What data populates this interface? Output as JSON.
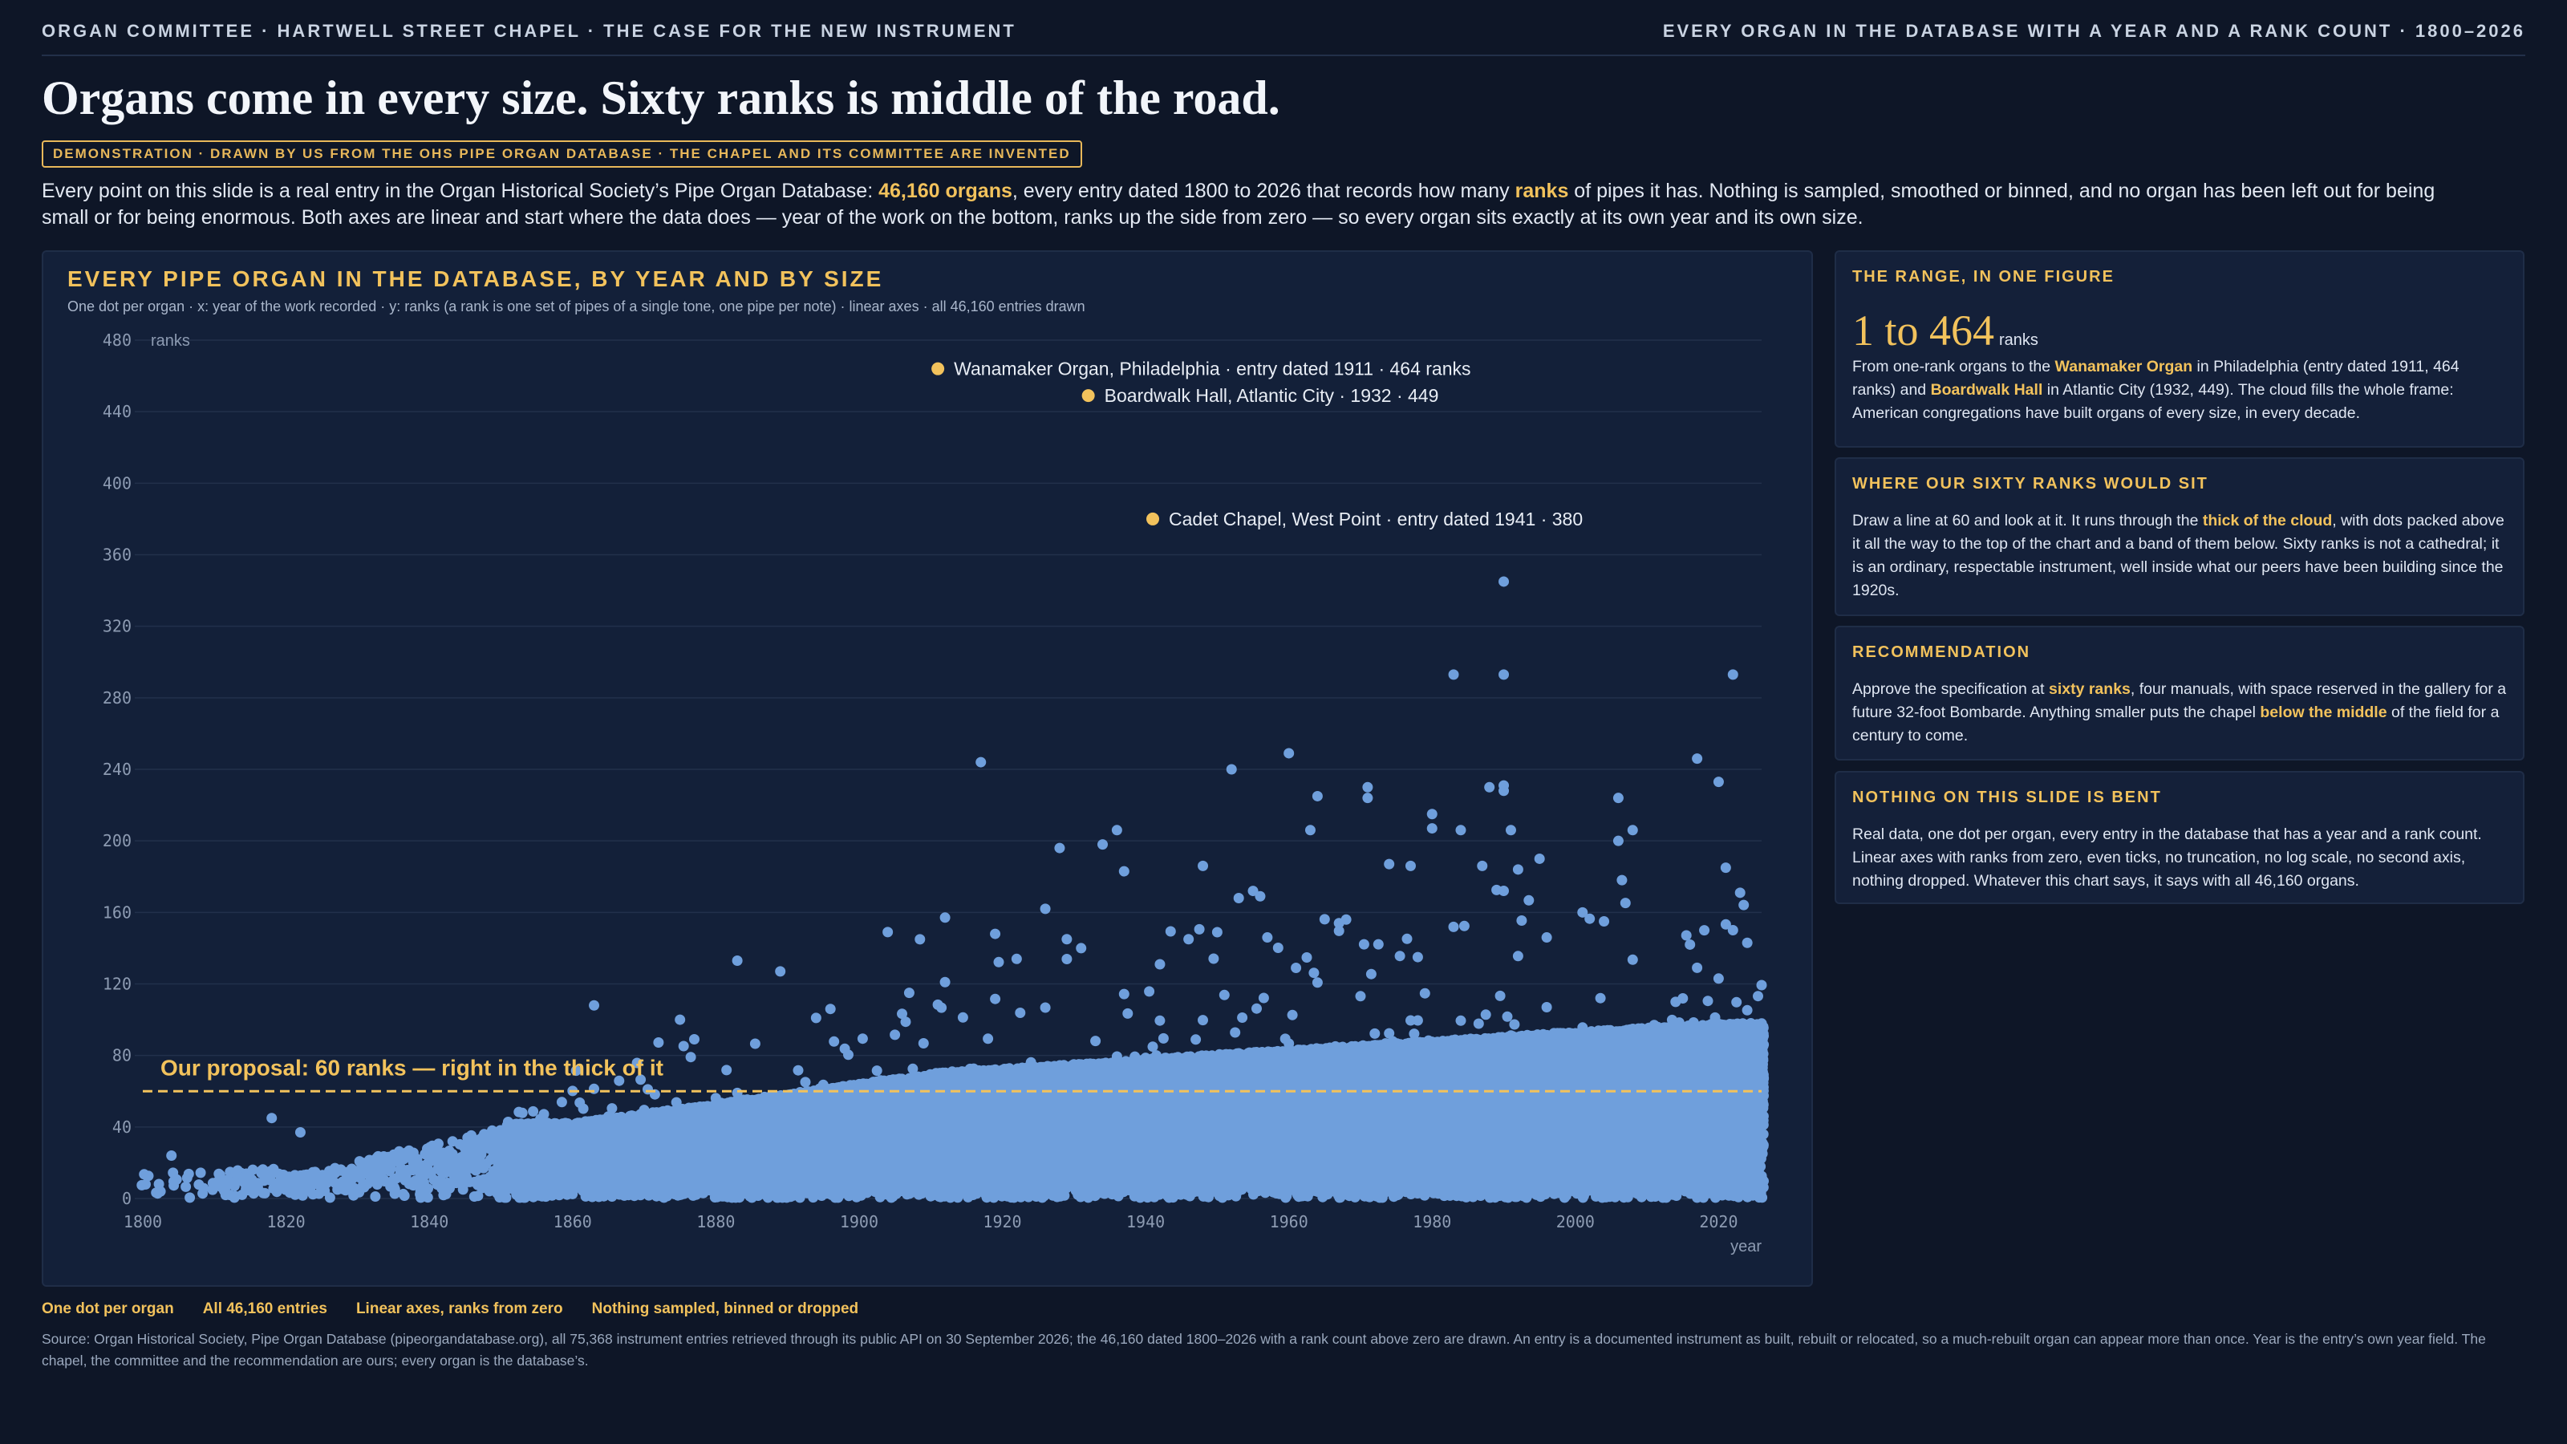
{
  "header": {
    "left": "ORGAN COMMITTEE · HARTWELL STREET CHAPEL · THE CASE FOR THE NEW INSTRUMENT",
    "right": "EVERY ORGAN IN THE DATABASE WITH A YEAR AND A RANK COUNT · 1800–2026"
  },
  "headline": "Organs come in every size. Sixty ranks is middle of the road.",
  "badge": "DEMONSTRATION · DRAWN BY US FROM THE OHS PIPE ORGAN DATABASE · THE CHAPEL AND ITS COMMITTEE ARE INVENTED",
  "lede": {
    "part1": "Every point on this slide is a real entry in the Organ Historical Society’s Pipe Organ Database: ",
    "hl1": "46,160 organs",
    "part2": ", every entry dated 1800 to 2026 that records how many ",
    "hl2": "ranks",
    "part3": " of pipes it has. Nothing is sampled, smoothed or binned, and no organ has been left out for being small or for being enormous. Both axes are linear and start where the data does — year of the work on the bottom, ranks up the side from zero — so every organ sits exactly at its own year and its own size."
  },
  "chart_panel": {
    "title": "EVERY PIPE ORGAN IN THE DATABASE, BY YEAR AND BY SIZE",
    "subtitle": "One dot per organ · x: year of the work recorded · y: ranks (a rank is one set of pipes of a single tone, one pipe per note) · linear axes · all 46,160 entries drawn"
  },
  "chart_data": {
    "type": "scatter",
    "title": "EVERY PIPE ORGAN IN THE DATABASE, BY YEAR AND BY SIZE",
    "xlabel": "year",
    "ylabel": "ranks",
    "xlim": [
      1800,
      2026
    ],
    "ylim": [
      0,
      480
    ],
    "x_ticks": [
      1800,
      1820,
      1840,
      1860,
      1880,
      1900,
      1920,
      1940,
      1960,
      1980,
      2000,
      2020
    ],
    "y_ticks": [
      0,
      40,
      80,
      120,
      160,
      200,
      240,
      280,
      320,
      360,
      400,
      440,
      480
    ],
    "grid": true,
    "point_count": 46160,
    "point_color": "#6f9fdc",
    "highlight_color": "#f2c25c",
    "reference_line": {
      "y": 60,
      "label": "Our proposal: 60 ranks — right in the thick of it"
    },
    "labeled_points": [
      {
        "x": 1911,
        "y": 464,
        "label": "Wanamaker Organ, Philadelphia · entry dated 1911 · 464 ranks"
      },
      {
        "x": 1932,
        "y": 449,
        "label": "Boardwalk Hall, Atlantic City · 1932 · 449"
      },
      {
        "x": 1941,
        "y": 380,
        "label": "Cadet Chapel, West Point · entry dated 1941 · 380"
      }
    ],
    "notable_points": [
      [
        1990,
        345
      ],
      [
        1983,
        293
      ],
      [
        1990,
        293
      ],
      [
        2022,
        293
      ],
      [
        1917,
        244
      ],
      [
        1952,
        240
      ],
      [
        1960,
        249
      ],
      [
        2017,
        246
      ],
      [
        2020,
        233
      ],
      [
        1988,
        230
      ],
      [
        1990,
        231
      ],
      [
        1990,
        228
      ],
      [
        1971,
        230
      ],
      [
        1971,
        224
      ],
      [
        2006,
        224
      ],
      [
        1964,
        225
      ],
      [
        1980,
        215
      ],
      [
        1980,
        207
      ],
      [
        1984,
        206
      ],
      [
        1991,
        206
      ],
      [
        2008,
        206
      ],
      [
        1963,
        206
      ],
      [
        2006,
        200
      ],
      [
        1934,
        198
      ],
      [
        1936,
        206
      ],
      [
        1928,
        196
      ],
      [
        1937,
        183
      ],
      [
        1948,
        186
      ],
      [
        1987,
        186
      ],
      [
        1992,
        184
      ],
      [
        1995,
        190
      ],
      [
        1974,
        187
      ],
      [
        1977,
        186
      ],
      [
        2021,
        185
      ],
      [
        2023,
        171
      ],
      [
        1955,
        172
      ],
      [
        1956,
        169
      ],
      [
        1904,
        149
      ],
      [
        1926,
        162
      ],
      [
        1919,
        148
      ],
      [
        1931,
        140
      ],
      [
        1929,
        145
      ],
      [
        1912,
        121
      ],
      [
        1907,
        115
      ],
      [
        1883,
        133
      ],
      [
        1889,
        127
      ],
      [
        1863,
        108
      ],
      [
        1894,
        101
      ],
      [
        1896,
        106
      ],
      [
        1875,
        100
      ],
      [
        1922,
        134
      ],
      [
        1942,
        131
      ],
      [
        1946,
        145
      ],
      [
        1957,
        146
      ],
      [
        1967,
        154
      ],
      [
        1968,
        156
      ],
      [
        1978,
        135
      ],
      [
        1996,
        146
      ],
      [
        2001,
        160
      ],
      [
        2004,
        155
      ],
      [
        2016,
        142
      ],
      [
        2018,
        150
      ],
      [
        2024,
        143
      ],
      [
        1818,
        45
      ],
      [
        1822,
        37
      ],
      [
        1804,
        24
      ],
      [
        1813,
        14
      ]
    ]
  },
  "sidebar": [
    {
      "title": "THE RANGE, IN ONE FIGURE",
      "big_value": "1 to 464",
      "big_unit": "ranks",
      "p1": "From one-rank organs to the ",
      "h1": "Wanamaker Organ",
      "p2": " in Philadelphia (entry dated 1911, 464 ranks) and ",
      "h2": "Boardwalk Hall",
      "p3": " in Atlantic City (1932, 449). The cloud fills the whole frame: American congregations have built organs of every size, in every decade."
    },
    {
      "title": "WHERE OUR SIXTY RANKS WOULD SIT",
      "p1": "Draw a line at 60 and look at it. It runs through the ",
      "h1": "thick of the cloud",
      "p2": ", with dots packed above it all the way to the top of the chart and a band of them below. Sixty ranks is not a cathedral; it is an ordinary, respectable instrument, well inside what our peers have been building since the 1920s."
    },
    {
      "title": "RECOMMENDATION",
      "p1": "Approve the specification at ",
      "h1": "sixty ranks",
      "p2": ", four manuals, with space reserved in the gallery for a future 32-foot Bombarde. Anything smaller puts the chapel ",
      "h2": "below the middle",
      "p3": " of the field for a century to come."
    },
    {
      "title": "NOTHING ON THIS SLIDE IS BENT",
      "p1": "Real data, one dot per organ, every entry in the database that has a year and a rank count. Linear axes with ranks from zero, even ticks, no truncation, no log scale, no second axis, nothing dropped. Whatever this chart says, it says with all 46,160 organs."
    }
  ],
  "footer": {
    "tags": [
      "One dot per organ",
      "All 46,160 entries",
      "Linear axes, ranks from zero",
      "Nothing sampled, binned or dropped"
    ],
    "source": "Source: Organ Historical Society, Pipe Organ Database (pipeorgandatabase.org), all 75,368 instrument entries retrieved through its public API on 30 September 2026; the 46,160 dated 1800–2026 with a rank count above zero are drawn. An entry is a documented instrument as built, rebuilt or relocated, so a much-rebuilt organ can appear more than once. Year is the entry’s own year field. The chapel, the committee and the recommendation are ours; every organ is the database’s."
  }
}
